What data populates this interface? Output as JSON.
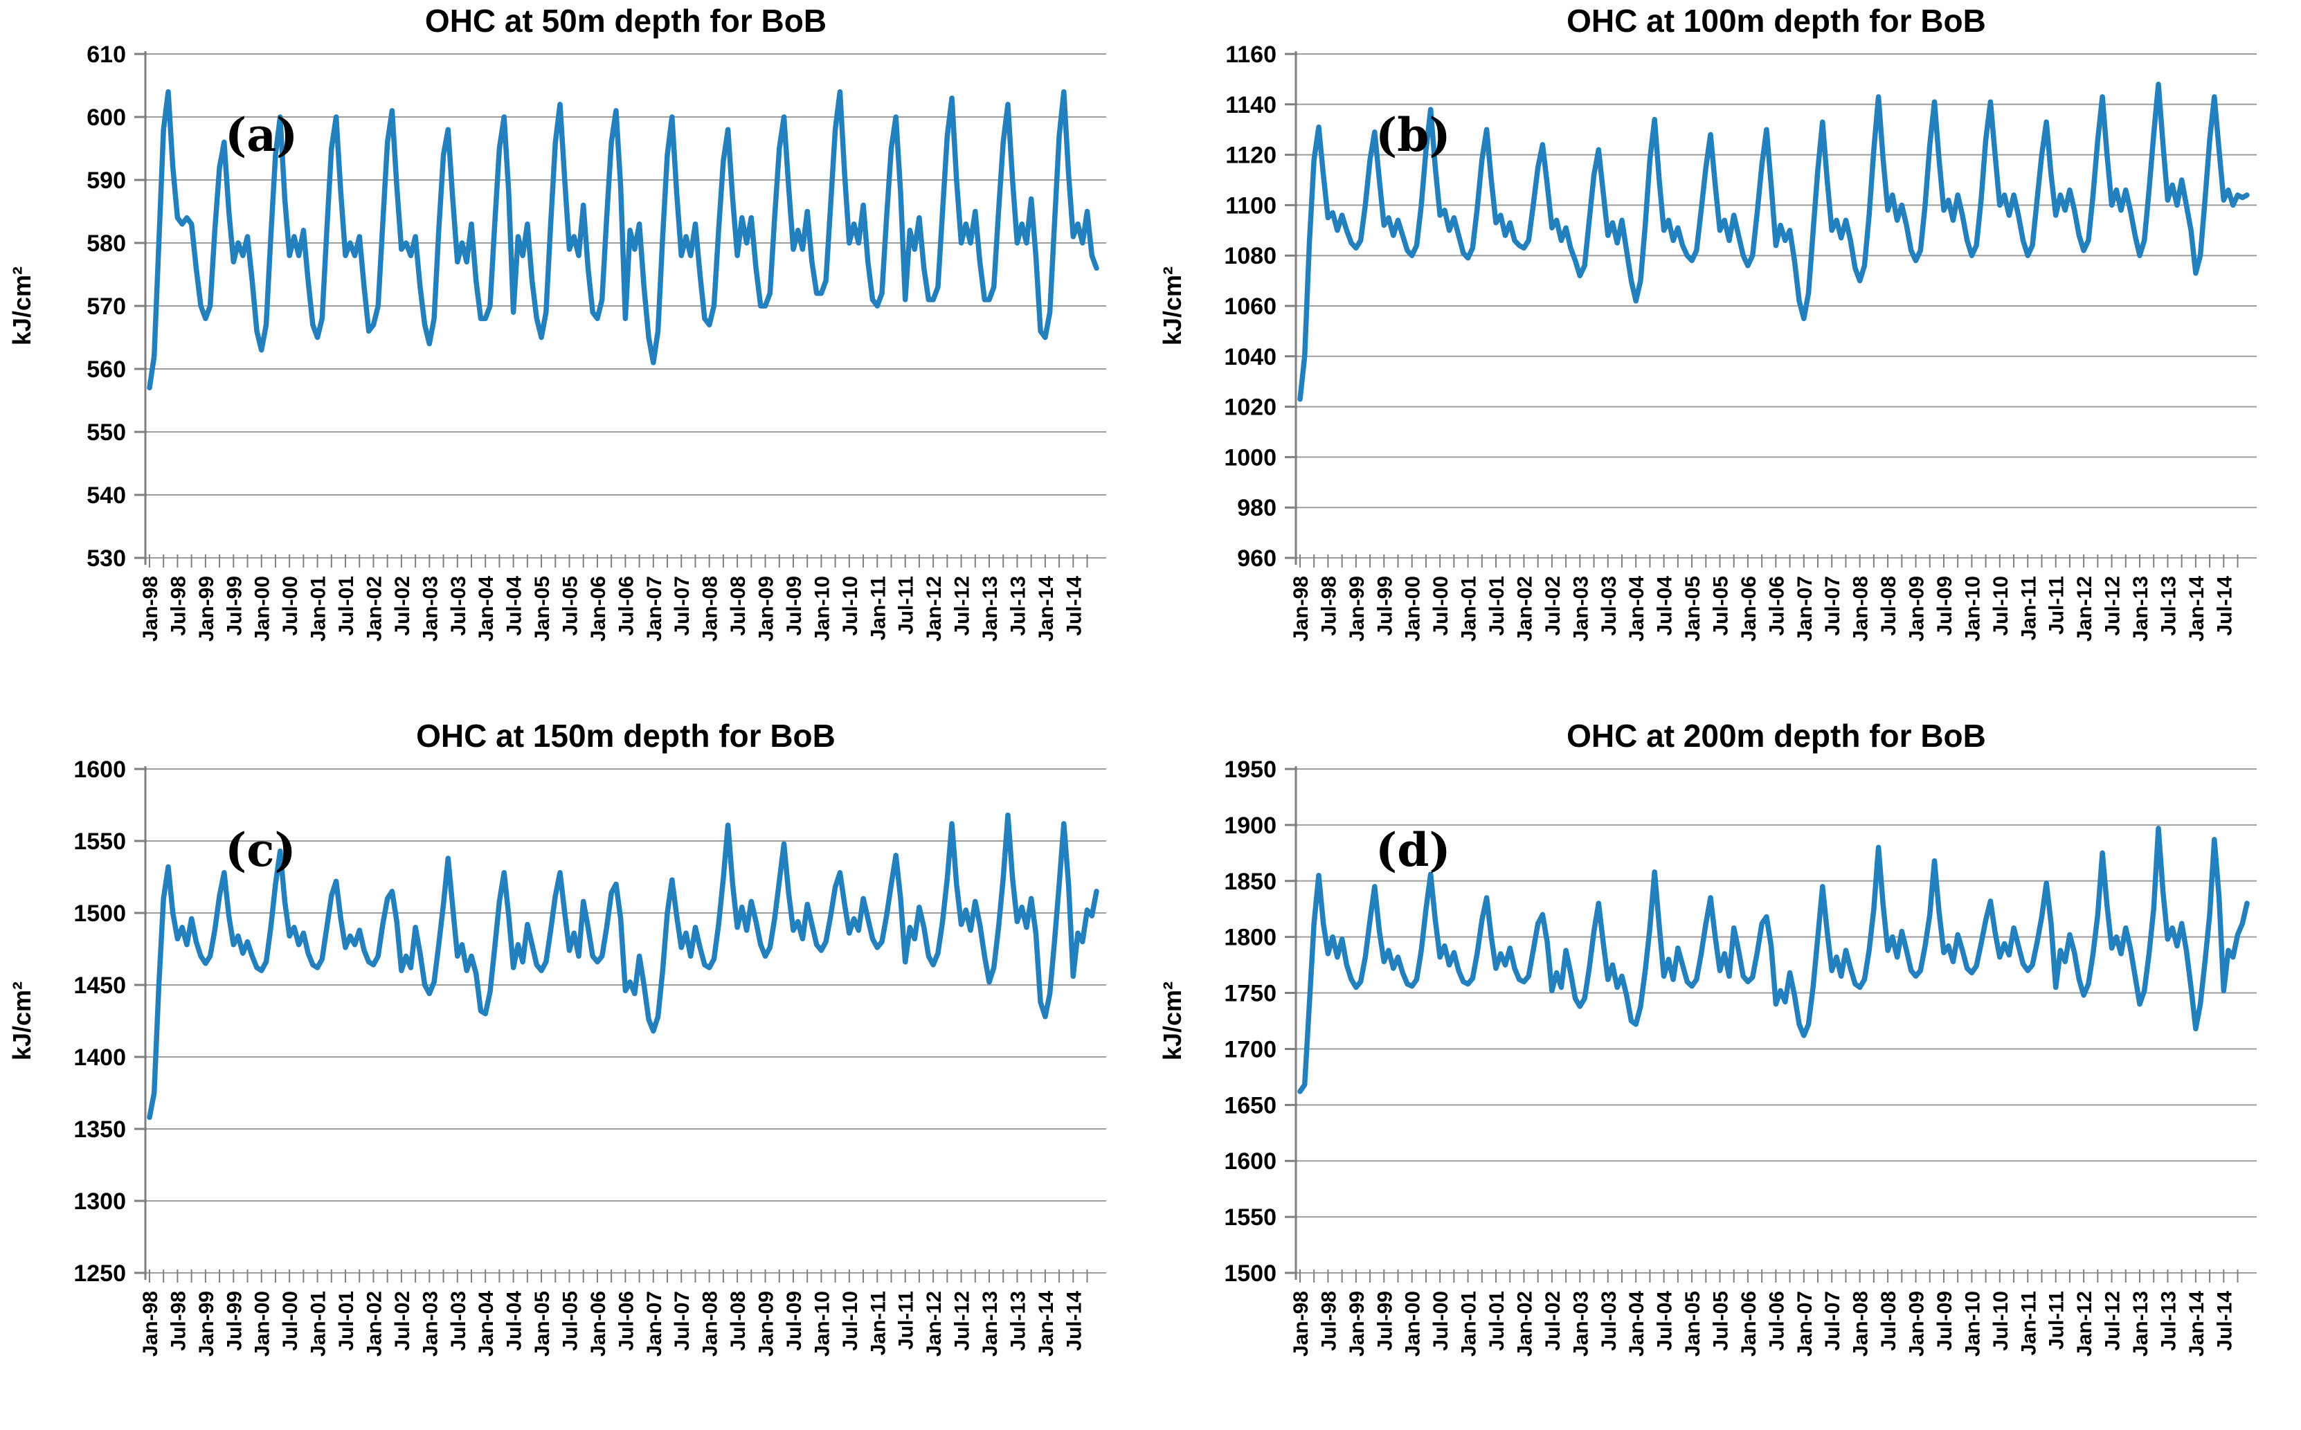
{
  "figure": {
    "background": "#ffffff"
  },
  "colors": {
    "line": "#2380BE",
    "grid": "#9e9e9e",
    "axis": "#7f7f7f",
    "text": "#000000",
    "background": "#ffffff"
  },
  "x_axis": {
    "months_per_label": 6,
    "n_points": 204,
    "tick_labels": [
      "Jan-98",
      "Jul-98",
      "Jan-99",
      "Jul-99",
      "Jan-00",
      "Jul-00",
      "Jan-01",
      "Jul-01",
      "Jan-02",
      "Jul-02",
      "Jan-03",
      "Jul-03",
      "Jan-04",
      "Jul-04",
      "Jan-05",
      "Jul-05",
      "Jan-06",
      "Jul-06",
      "Jan-07",
      "Jul-07",
      "Jan-08",
      "Jul-08",
      "Jan-09",
      "Jul-09",
      "Jan-10",
      "Jul-10",
      "Jan-11",
      "Jul-11",
      "Jan-12",
      "Jul-12",
      "Jan-13",
      "Jul-13",
      "Jan-14",
      "Jul-14"
    ]
  },
  "chart_data": [
    {
      "type": "line",
      "id": "a",
      "panel_label": "(a)",
      "title": "OHC at 50m depth for BoB",
      "xlabel": "",
      "ylabel": "kJ/cm²",
      "ylim": [
        530,
        610
      ],
      "y_tick_step": 10,
      "grid": true,
      "legend": "none",
      "x_start": "Jan-98",
      "x_end": "Dec-14",
      "line_color": "#2380BE",
      "values": [
        557,
        562,
        580,
        598,
        604,
        592,
        584,
        583,
        584,
        583,
        576,
        570,
        568,
        570,
        582,
        592,
        596,
        585,
        577,
        580,
        578,
        581,
        574,
        566,
        563,
        567,
        581,
        594,
        600,
        587,
        578,
        581,
        578,
        582,
        574,
        567,
        565,
        568,
        582,
        595,
        600,
        588,
        578,
        580,
        578,
        581,
        573,
        566,
        567,
        570,
        583,
        596,
        601,
        589,
        579,
        580,
        578,
        581,
        573,
        567,
        564,
        568,
        582,
        594,
        598,
        587,
        577,
        580,
        577,
        583,
        574,
        568,
        568,
        570,
        583,
        595,
        600,
        588,
        569,
        581,
        578,
        583,
        574,
        568,
        565,
        569,
        583,
        596,
        602,
        590,
        579,
        581,
        578,
        586,
        576,
        569,
        568,
        571,
        584,
        596,
        601,
        589,
        568,
        582,
        579,
        583,
        573,
        565,
        561,
        566,
        581,
        594,
        600,
        588,
        578,
        581,
        578,
        583,
        575,
        568,
        567,
        570,
        582,
        593,
        598,
        587,
        578,
        584,
        580,
        584,
        576,
        570,
        570,
        572,
        584,
        595,
        600,
        589,
        579,
        582,
        579,
        585,
        577,
        572,
        572,
        574,
        586,
        598,
        604,
        591,
        580,
        583,
        580,
        586,
        577,
        571,
        570,
        572,
        584,
        595,
        600,
        588,
        571,
        582,
        579,
        584,
        576,
        571,
        571,
        573,
        585,
        597,
        603,
        590,
        580,
        583,
        580,
        585,
        577,
        571,
        571,
        573,
        585,
        596,
        602,
        590,
        580,
        583,
        580,
        587,
        578,
        566,
        565,
        569,
        583,
        597,
        604,
        591,
        581,
        583,
        580,
        585,
        578,
        576
      ]
    },
    {
      "type": "line",
      "id": "b",
      "panel_label": "(b)",
      "title": "OHC at 100m depth for BoB",
      "xlabel": "",
      "ylabel": "kJ/cm²",
      "ylim": [
        960,
        1160
      ],
      "y_tick_step": 20,
      "grid": true,
      "legend": "none",
      "x_start": "Jan-98",
      "x_end": "Dec-14",
      "line_color": "#2380BE",
      "values": [
        1023,
        1040,
        1085,
        1118,
        1131,
        1112,
        1095,
        1097,
        1090,
        1096,
        1090,
        1085,
        1083,
        1086,
        1100,
        1118,
        1129,
        1110,
        1092,
        1095,
        1088,
        1094,
        1088,
        1082,
        1080,
        1084,
        1100,
        1122,
        1138,
        1115,
        1096,
        1098,
        1090,
        1095,
        1088,
        1081,
        1079,
        1083,
        1099,
        1118,
        1130,
        1110,
        1093,
        1096,
        1088,
        1093,
        1086,
        1084,
        1083,
        1086,
        1100,
        1115,
        1124,
        1108,
        1091,
        1094,
        1086,
        1091,
        1083,
        1078,
        1072,
        1076,
        1094,
        1112,
        1122,
        1105,
        1088,
        1093,
        1085,
        1094,
        1082,
        1070,
        1062,
        1070,
        1092,
        1118,
        1134,
        1110,
        1090,
        1094,
        1086,
        1091,
        1084,
        1080,
        1078,
        1082,
        1098,
        1115,
        1128,
        1108,
        1090,
        1094,
        1086,
        1096,
        1088,
        1080,
        1076,
        1080,
        1097,
        1116,
        1130,
        1108,
        1084,
        1092,
        1086,
        1090,
        1078,
        1062,
        1055,
        1065,
        1090,
        1114,
        1133,
        1110,
        1090,
        1094,
        1087,
        1094,
        1086,
        1075,
        1070,
        1076,
        1096,
        1122,
        1143,
        1118,
        1098,
        1104,
        1094,
        1100,
        1092,
        1082,
        1078,
        1082,
        1100,
        1124,
        1141,
        1118,
        1098,
        1102,
        1094,
        1104,
        1096,
        1086,
        1080,
        1084,
        1102,
        1126,
        1141,
        1120,
        1100,
        1104,
        1096,
        1104,
        1096,
        1086,
        1080,
        1084,
        1102,
        1120,
        1133,
        1112,
        1096,
        1104,
        1098,
        1106,
        1098,
        1088,
        1082,
        1086,
        1104,
        1126,
        1143,
        1120,
        1100,
        1106,
        1098,
        1106,
        1098,
        1088,
        1080,
        1086,
        1106,
        1128,
        1148,
        1124,
        1102,
        1108,
        1100,
        1110,
        1100,
        1090,
        1073,
        1080,
        1102,
        1126,
        1143,
        1122,
        1102,
        1106,
        1100,
        1104,
        1103,
        1104
      ]
    },
    {
      "type": "line",
      "id": "c",
      "panel_label": "(c)",
      "title": "OHC at 150m depth for BoB",
      "xlabel": "",
      "ylabel": "kJ/cm²",
      "ylim": [
        1250,
        1600
      ],
      "y_tick_step": 50,
      "grid": true,
      "legend": "none",
      "x_start": "Jan-98",
      "x_end": "Dec-14",
      "line_color": "#2380BE",
      "values": [
        1358,
        1375,
        1450,
        1510,
        1532,
        1500,
        1482,
        1490,
        1478,
        1496,
        1480,
        1470,
        1465,
        1470,
        1488,
        1512,
        1528,
        1498,
        1478,
        1484,
        1472,
        1480,
        1470,
        1462,
        1460,
        1466,
        1490,
        1520,
        1543,
        1508,
        1484,
        1490,
        1478,
        1486,
        1472,
        1464,
        1462,
        1468,
        1490,
        1512,
        1522,
        1496,
        1476,
        1484,
        1478,
        1488,
        1474,
        1466,
        1464,
        1470,
        1492,
        1510,
        1515,
        1494,
        1460,
        1470,
        1462,
        1490,
        1472,
        1450,
        1444,
        1452,
        1478,
        1506,
        1538,
        1504,
        1470,
        1478,
        1460,
        1470,
        1458,
        1432,
        1430,
        1445,
        1476,
        1508,
        1528,
        1498,
        1462,
        1478,
        1466,
        1492,
        1478,
        1464,
        1460,
        1466,
        1488,
        1512,
        1528,
        1500,
        1474,
        1486,
        1470,
        1508,
        1490,
        1470,
        1466,
        1470,
        1490,
        1514,
        1520,
        1496,
        1446,
        1452,
        1444,
        1470,
        1450,
        1426,
        1418,
        1428,
        1460,
        1500,
        1523,
        1498,
        1476,
        1486,
        1470,
        1490,
        1476,
        1464,
        1462,
        1468,
        1492,
        1524,
        1561,
        1520,
        1490,
        1504,
        1488,
        1508,
        1494,
        1478,
        1470,
        1476,
        1496,
        1522,
        1548,
        1514,
        1488,
        1494,
        1482,
        1506,
        1492,
        1478,
        1474,
        1480,
        1498,
        1518,
        1528,
        1506,
        1486,
        1496,
        1488,
        1510,
        1496,
        1482,
        1476,
        1480,
        1498,
        1520,
        1540,
        1510,
        1466,
        1490,
        1482,
        1504,
        1490,
        1470,
        1464,
        1472,
        1494,
        1524,
        1562,
        1520,
        1492,
        1502,
        1488,
        1508,
        1492,
        1470,
        1452,
        1462,
        1490,
        1524,
        1568,
        1524,
        1494,
        1504,
        1490,
        1510,
        1486,
        1438,
        1428,
        1444,
        1480,
        1520,
        1562,
        1520,
        1456,
        1486,
        1480,
        1502,
        1498,
        1515
      ]
    },
    {
      "type": "line",
      "id": "d",
      "panel_label": "(d)",
      "title": "OHC at 200m depth for BoB",
      "xlabel": "",
      "ylabel": "kJ/cm²",
      "ylim": [
        1500,
        1950
      ],
      "y_tick_step": 50,
      "grid": true,
      "legend": "none",
      "x_start": "Jan-98",
      "x_end": "Dec-14",
      "line_color": "#2380BE",
      "values": [
        1662,
        1668,
        1740,
        1812,
        1855,
        1812,
        1785,
        1800,
        1782,
        1798,
        1775,
        1762,
        1755,
        1760,
        1782,
        1815,
        1845,
        1805,
        1778,
        1788,
        1772,
        1782,
        1768,
        1758,
        1756,
        1762,
        1788,
        1825,
        1856,
        1815,
        1782,
        1792,
        1775,
        1786,
        1770,
        1760,
        1758,
        1763,
        1786,
        1815,
        1835,
        1800,
        1772,
        1785,
        1775,
        1790,
        1772,
        1762,
        1760,
        1765,
        1788,
        1812,
        1820,
        1795,
        1752,
        1768,
        1755,
        1788,
        1768,
        1745,
        1738,
        1745,
        1772,
        1805,
        1830,
        1795,
        1762,
        1775,
        1755,
        1765,
        1748,
        1725,
        1722,
        1738,
        1770,
        1808,
        1858,
        1810,
        1765,
        1780,
        1762,
        1790,
        1775,
        1760,
        1756,
        1762,
        1785,
        1812,
        1835,
        1800,
        1770,
        1785,
        1765,
        1808,
        1788,
        1765,
        1760,
        1764,
        1786,
        1812,
        1818,
        1792,
        1740,
        1752,
        1742,
        1768,
        1748,
        1722,
        1712,
        1722,
        1756,
        1800,
        1845,
        1805,
        1770,
        1782,
        1765,
        1788,
        1772,
        1758,
        1755,
        1762,
        1788,
        1825,
        1880,
        1828,
        1788,
        1800,
        1782,
        1805,
        1788,
        1770,
        1765,
        1770,
        1792,
        1820,
        1868,
        1822,
        1786,
        1792,
        1778,
        1802,
        1788,
        1772,
        1768,
        1774,
        1794,
        1815,
        1832,
        1804,
        1782,
        1794,
        1784,
        1808,
        1792,
        1776,
        1770,
        1775,
        1795,
        1818,
        1848,
        1812,
        1755,
        1788,
        1778,
        1802,
        1786,
        1762,
        1748,
        1758,
        1785,
        1820,
        1875,
        1828,
        1790,
        1800,
        1785,
        1808,
        1790,
        1765,
        1740,
        1752,
        1785,
        1825,
        1897,
        1840,
        1798,
        1808,
        1792,
        1812,
        1788,
        1755,
        1718,
        1740,
        1778,
        1820,
        1887,
        1836,
        1752,
        1788,
        1782,
        1802,
        1812,
        1830
      ]
    }
  ]
}
